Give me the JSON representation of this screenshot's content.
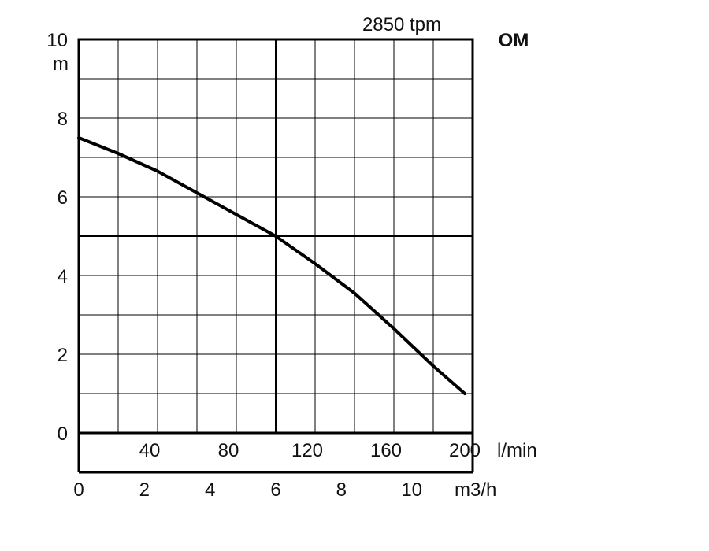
{
  "chart_data": {
    "type": "line",
    "model": "OM",
    "speed": "2850 tpm",
    "y_unit": "m",
    "ylim": [
      0,
      10
    ],
    "y_ticks": [
      "0",
      "2",
      "4",
      "6",
      "8",
      "10"
    ],
    "xlim": [
      0,
      200
    ],
    "x_ticks_lmin": [
      "40",
      "80",
      "120",
      "160",
      "200"
    ],
    "x_unit_lmin": "l/min",
    "x_ticks_m3h": [
      "0",
      "2",
      "4",
      "6",
      "8",
      "10"
    ],
    "x_unit_m3h": "m3/h",
    "grid": true,
    "series": [
      {
        "x": [
          0,
          20,
          40,
          60,
          80,
          100,
          120,
          140,
          160,
          180,
          196
        ],
        "y": [
          7.5,
          7.1,
          6.65,
          6.1,
          5.55,
          5.0,
          4.3,
          3.55,
          2.65,
          1.7,
          1.0
        ]
      }
    ],
    "colors": {
      "curve": "#000000",
      "grid": "#000000",
      "text": "#111111"
    }
  }
}
